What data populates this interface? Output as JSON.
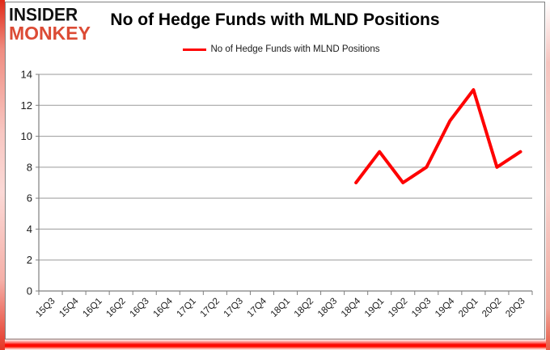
{
  "logo": {
    "line1": "INSIDER",
    "line2": "MONKEY",
    "color1": "#111111",
    "color2": "#dc4b35"
  },
  "title": "No of Hedge Funds with MLND Positions",
  "legend": {
    "label": "No of Hedge Funds with MLND Positions",
    "color": "#fe0101"
  },
  "chart_data": {
    "type": "line",
    "title": "No of Hedge Funds with MLND Positions",
    "categories": [
      "15Q3",
      "15Q4",
      "16Q1",
      "16Q2",
      "16Q3",
      "16Q4",
      "17Q1",
      "17Q2",
      "17Q3",
      "17Q4",
      "18Q1",
      "18Q2",
      "18Q3",
      "18Q4",
      "19Q1",
      "19Q2",
      "19Q3",
      "19Q4",
      "20Q1",
      "20Q2",
      "20Q3"
    ],
    "series": [
      {
        "name": "No of Hedge Funds with MLND Positions",
        "color": "#fe0101",
        "values": [
          null,
          null,
          null,
          null,
          null,
          null,
          null,
          null,
          null,
          null,
          null,
          null,
          null,
          7,
          9,
          7,
          8,
          11,
          13,
          8,
          9
        ]
      }
    ],
    "xlabel": "",
    "ylabel": "",
    "ylim": [
      0,
      14
    ],
    "yticks": [
      0,
      2,
      4,
      6,
      8,
      10,
      12,
      14
    ],
    "grid": true,
    "legend_position": "top-center",
    "colors": {
      "grid": "#9a9a9a",
      "axis": "#7f7f7f",
      "labels": "#1c1c1c",
      "frame_border": "#808080"
    }
  }
}
